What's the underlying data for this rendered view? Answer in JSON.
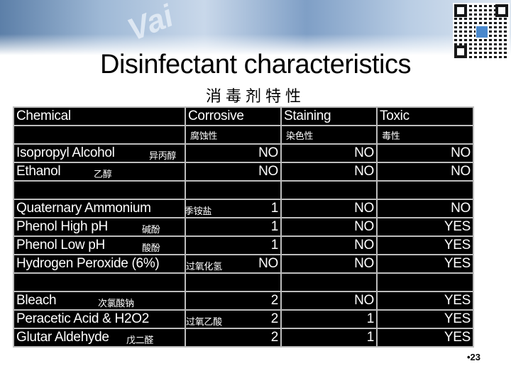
{
  "slide": {
    "title": "Disinfectant characteristics",
    "subtitle": "消毒剂特性",
    "page_number": "•23"
  },
  "table": {
    "headers": [
      "Chemical",
      "Corrosive",
      "Staining",
      "Toxic"
    ],
    "headers_zh": [
      "",
      "腐蚀性",
      "染色性",
      "毒性"
    ],
    "rows": [
      {
        "name": "Isopropyl Alcohol",
        "zh": "异丙醇",
        "corrosive": "NO",
        "staining": "NO",
        "toxic": "NO"
      },
      {
        "name": "Ethanol",
        "zh": "乙醇",
        "corrosive": "NO",
        "staining": "NO",
        "toxic": "NO"
      },
      {
        "name": "",
        "zh": "",
        "corrosive": "",
        "staining": "",
        "toxic": ""
      },
      {
        "name": "Quaternary Ammonium",
        "zh": "季铵盐",
        "corrosive": "1",
        "staining": "NO",
        "toxic": "NO"
      },
      {
        "name": "Phenol High pH",
        "zh": "碱酚",
        "corrosive": "1",
        "staining": "NO",
        "toxic": "YES"
      },
      {
        "name": "Phenol Low pH",
        "zh": "酸酚",
        "corrosive": "1",
        "staining": "NO",
        "toxic": "YES"
      },
      {
        "name": "Hydrogen Peroxide (6%)",
        "zh": "过氧化氢",
        "corrosive": "NO",
        "staining": "NO",
        "toxic": "YES"
      },
      {
        "name": "",
        "zh": "",
        "corrosive": "",
        "staining": "",
        "toxic": ""
      },
      {
        "name": "Bleach",
        "zh": "次氯酸钠",
        "corrosive": "2",
        "staining": "NO",
        "toxic": "YES"
      },
      {
        "name": "Peracetic Acid & H2O2",
        "zh": "过氧乙酸",
        "corrosive": "2",
        "staining": "1",
        "toxic": "YES"
      },
      {
        "name": "Glutar Aldehyde",
        "zh": "戊二醛",
        "corrosive": "2",
        "staining": "1",
        "toxic": "YES"
      }
    ]
  }
}
